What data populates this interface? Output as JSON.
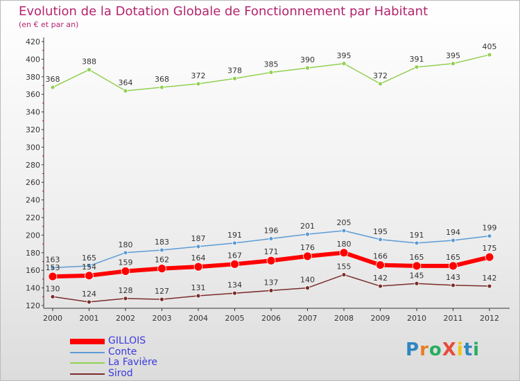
{
  "chart_title": "Evolution de la Dotation Globale de Fonctionnement par Habitant",
  "chart_subtitle": "(en € et par an)",
  "logo_text": "ProXiti",
  "chart_data": {
    "type": "line",
    "title": "Evolution de la Dotation Globale de Fonctionnement par Habitant",
    "subtitle": "(en € et par an)",
    "xlabel": "",
    "ylabel": "",
    "ylim": [
      120,
      420
    ],
    "yticks": [
      120,
      140,
      160,
      180,
      200,
      220,
      240,
      260,
      280,
      300,
      320,
      340,
      360,
      380,
      400,
      420
    ],
    "x": [
      "2000",
      "2001",
      "2002",
      "2003",
      "2004",
      "2005",
      "2006",
      "2007",
      "2008",
      "2009",
      "2010",
      "2011",
      "2012"
    ],
    "grid": false,
    "legend_position": "bottom-left",
    "series": [
      {
        "name": "GILLOIS",
        "color": "#ff0000",
        "values": [
          153,
          154,
          159,
          162,
          164,
          167,
          171,
          176,
          180,
          166,
          165,
          165,
          175
        ]
      },
      {
        "name": "Conte",
        "color": "#5b9bd5",
        "values": [
          163,
          165,
          180,
          183,
          187,
          191,
          196,
          201,
          205,
          195,
          191,
          194,
          199
        ]
      },
      {
        "name": "La Favière",
        "color": "#92d050",
        "values": [
          368,
          388,
          364,
          368,
          372,
          378,
          385,
          390,
          395,
          372,
          391,
          395,
          405
        ]
      },
      {
        "name": "Sirod",
        "color": "#7b2b2b",
        "values": [
          130,
          124,
          128,
          127,
          131,
          134,
          137,
          140,
          155,
          142,
          145,
          143,
          142
        ]
      }
    ]
  }
}
